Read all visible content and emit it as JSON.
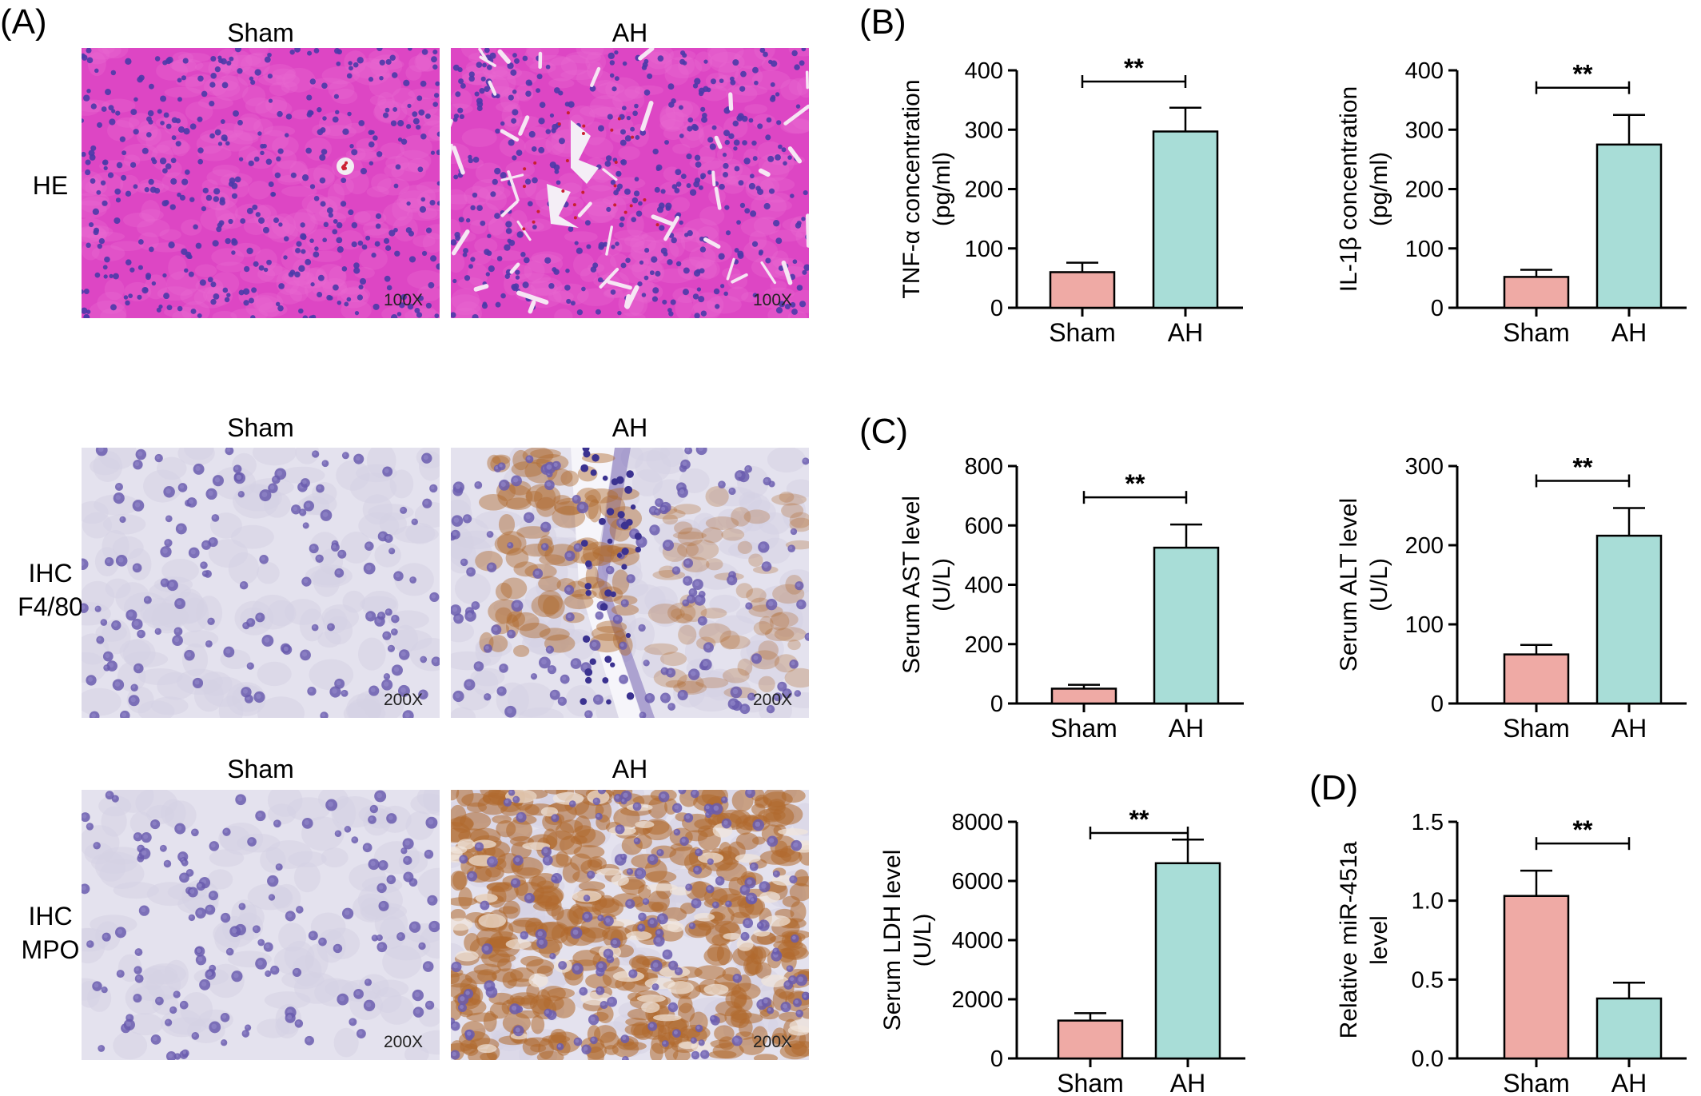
{
  "panel_letters": {
    "A": "(A)",
    "B": "(B)",
    "C": "(C)",
    "D": "(D)"
  },
  "micrographs": {
    "rows": [
      {
        "label_lines": [
          "HE"
        ],
        "columns": [
          "Sham",
          "AH"
        ],
        "magnification": [
          "100X",
          "100X"
        ]
      },
      {
        "label_lines": [
          "IHC",
          "F4/80"
        ],
        "columns": [
          "Sham",
          "AH"
        ],
        "magnification": [
          "200X",
          "200X"
        ]
      },
      {
        "label_lines": [
          "IHC",
          "MPO"
        ],
        "columns": [
          "Sham",
          "AH"
        ],
        "magnification": [
          "200X",
          "200X"
        ]
      }
    ]
  },
  "colors": {
    "sham": "#efaaa5",
    "ah": "#a8ddd7",
    "he": "#dd46c4",
    "ihc_bg": "#e4e2ee",
    "dab": "#b06a2e"
  },
  "chart_data": [
    {
      "type": "bar",
      "panel": "B",
      "categories": [
        "Sham",
        "AH"
      ],
      "values": [
        60,
        297
      ],
      "errors": [
        16,
        40
      ],
      "ylabel_lines": [
        "TNF-α concentration",
        "(pg/ml)"
      ],
      "ylim": [
        0,
        400
      ],
      "yticks": [
        "0",
        "100",
        "200",
        "300",
        "400"
      ],
      "significance": "**"
    },
    {
      "type": "bar",
      "panel": "B",
      "categories": [
        "Sham",
        "AH"
      ],
      "values": [
        52,
        275
      ],
      "errors": [
        12,
        50
      ],
      "ylabel_lines": [
        "IL-1β concentration",
        "(pg/ml)"
      ],
      "ylim": [
        0,
        400
      ],
      "yticks": [
        "0",
        "100",
        "200",
        "300",
        "400"
      ],
      "significance": "**"
    },
    {
      "type": "bar",
      "panel": "C",
      "categories": [
        "Sham",
        "AH"
      ],
      "values": [
        50,
        525
      ],
      "errors": [
        13,
        78
      ],
      "ylabel_lines": [
        "Serum AST level",
        "(U/L)"
      ],
      "ylim": [
        0,
        800
      ],
      "yticks": [
        "0",
        "200",
        "400",
        "600",
        "800"
      ],
      "significance": "**"
    },
    {
      "type": "bar",
      "panel": "C",
      "categories": [
        "Sham",
        "AH"
      ],
      "values": [
        62,
        212
      ],
      "errors": [
        12,
        35
      ],
      "ylabel_lines": [
        "Serum ALT level",
        "(U/L)"
      ],
      "ylim": [
        0,
        300
      ],
      "yticks": [
        "0",
        "100",
        "200",
        "300"
      ],
      "significance": "**"
    },
    {
      "type": "bar",
      "panel": "C",
      "categories": [
        "Sham",
        "AH"
      ],
      "values": [
        1280,
        6600
      ],
      "errors": [
        250,
        800
      ],
      "ylabel_lines": [
        "Serum LDH level",
        "(U/L)"
      ],
      "ylim": [
        0,
        8000
      ],
      "yticks": [
        "0",
        "2000",
        "4000",
        "6000",
        "8000"
      ],
      "significance": "**"
    },
    {
      "type": "bar",
      "panel": "D",
      "categories": [
        "Sham",
        "AH"
      ],
      "values": [
        1.03,
        0.38
      ],
      "errors": [
        0.16,
        0.1
      ],
      "ylabel_lines": [
        "Relative miR-451a",
        "level"
      ],
      "ylim": [
        0,
        1.5
      ],
      "yticks": [
        "0.0",
        "0.5",
        "1.0",
        "1.5"
      ],
      "significance": "**"
    }
  ]
}
